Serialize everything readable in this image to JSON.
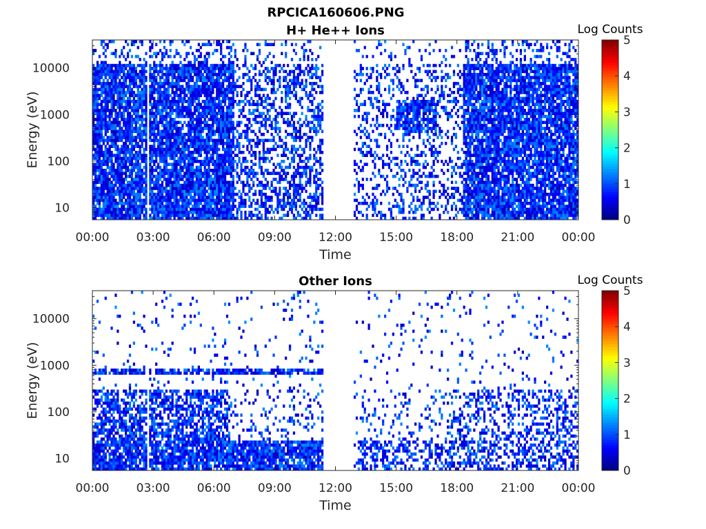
{
  "figure_title": "RPCICA160606.PNG",
  "chart_data": [
    {
      "type": "heatmap",
      "title": "H+ He++ Ions",
      "xlabel": "Time",
      "ylabel": "Energy (eV)",
      "x_ticks": [
        "00:00",
        "03:00",
        "06:00",
        "09:00",
        "12:00",
        "15:00",
        "18:00",
        "21:00",
        "00:00"
      ],
      "y_ticks": [
        "10",
        "100",
        "1000",
        "10000"
      ],
      "y_scale": "log",
      "ylim": [
        5.5,
        40000
      ],
      "xlim_hours": [
        0,
        24
      ],
      "data_gap_hours": [
        11.35,
        12.95
      ],
      "colorbar": {
        "label": "Log Counts",
        "ticks": [
          "0",
          "1",
          "2",
          "3",
          "4",
          "5"
        ],
        "range": [
          0,
          5
        ],
        "colormap": "jet"
      },
      "background_color": "#ffffff",
      "dominant_color": "#00008f"
    },
    {
      "type": "heatmap",
      "title": "Other Ions",
      "xlabel": "Time",
      "ylabel": "Energy (eV)",
      "x_ticks": [
        "00:00",
        "03:00",
        "06:00",
        "09:00",
        "12:00",
        "15:00",
        "18:00",
        "21:00",
        "00:00"
      ],
      "y_ticks": [
        "10",
        "100",
        "1000",
        "10000"
      ],
      "y_scale": "log",
      "ylim": [
        5.5,
        40000
      ],
      "xlim_hours": [
        0,
        24
      ],
      "data_gap_hours": [
        11.35,
        12.95
      ],
      "colorbar": {
        "label": "Log Counts",
        "ticks": [
          "0",
          "1",
          "2",
          "3",
          "4",
          "5"
        ],
        "range": [
          0,
          5
        ],
        "colormap": "jet"
      },
      "background_color": "#ffffff",
      "dominant_color": "#00008f"
    }
  ]
}
